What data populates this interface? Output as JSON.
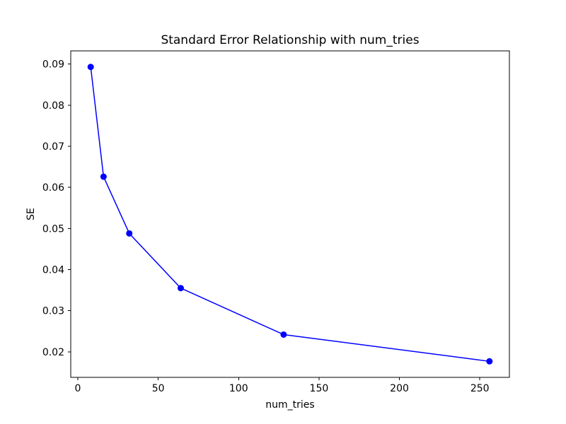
{
  "figure": {
    "background": "#ffffff",
    "spine_color": "#000000",
    "text_color": "#000000"
  },
  "chart_data": {
    "type": "line",
    "title": "Standard Error Relationship with num_tries",
    "xlabel": "num_tries",
    "ylabel": "SE",
    "series": [
      {
        "name": "SE",
        "x": [
          8,
          16,
          32,
          64,
          128,
          256
        ],
        "y": [
          0.0893,
          0.0626,
          0.0488,
          0.0355,
          0.0242,
          0.0177
        ],
        "color": "#0000ff",
        "marker": "circle",
        "marker_size": 4.5,
        "line_width": 1.5
      }
    ],
    "xlim": [
      -4.4,
      268.4
    ],
    "ylim": [
      0.0138,
      0.0932
    ],
    "xticks": {
      "values": [
        0,
        50,
        100,
        150,
        200,
        250
      ],
      "labels": [
        "0",
        "50",
        "100",
        "150",
        "200",
        "250"
      ]
    },
    "yticks": {
      "values": [
        0.02,
        0.03,
        0.04,
        0.05,
        0.06,
        0.07,
        0.08,
        0.09
      ],
      "labels": [
        "0.02",
        "0.03",
        "0.04",
        "0.05",
        "0.06",
        "0.07",
        "0.08",
        "0.09"
      ]
    },
    "grid": false,
    "legend_position": "none"
  }
}
